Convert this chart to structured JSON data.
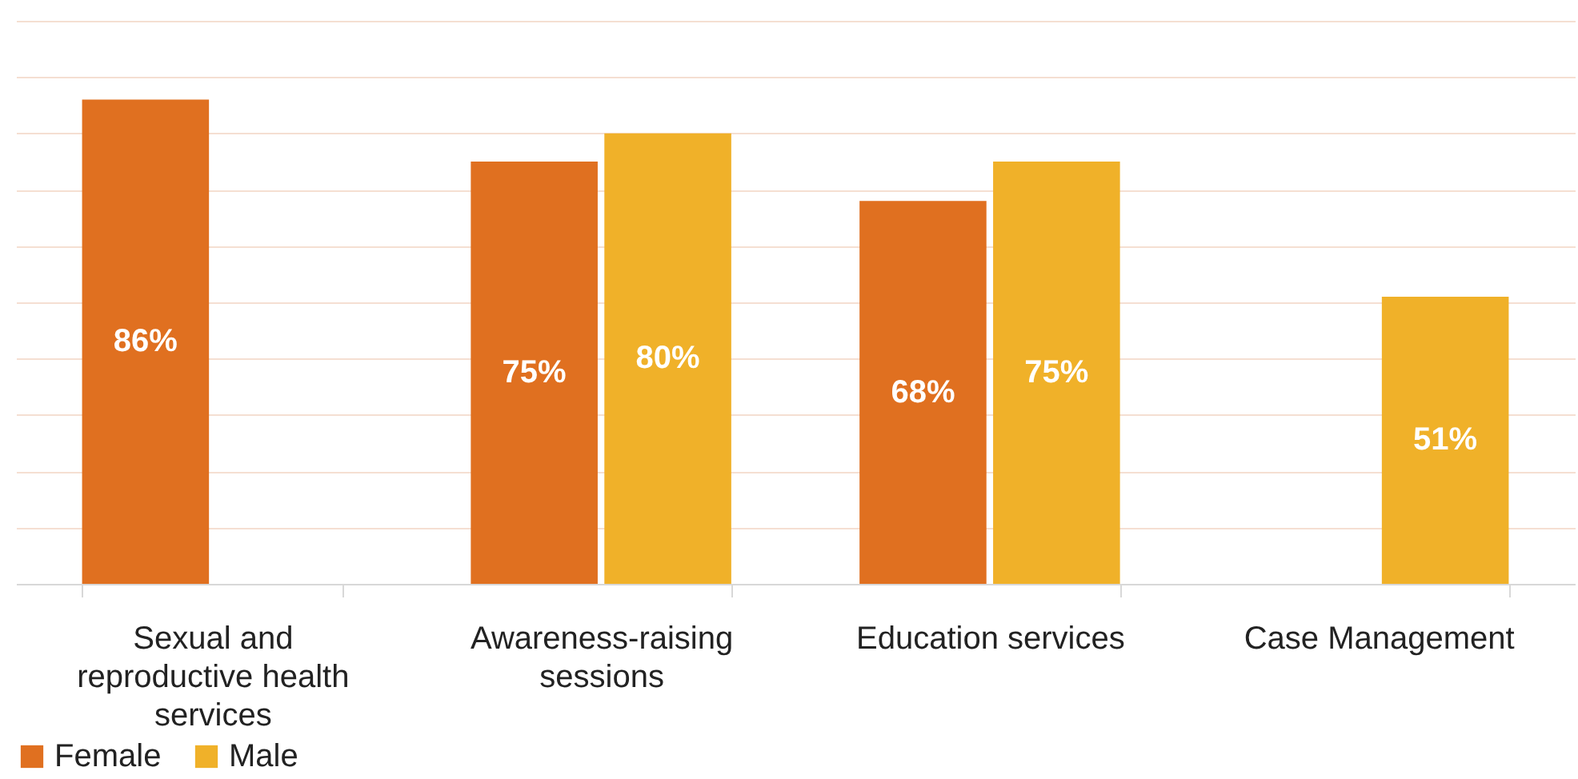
{
  "chart_data": {
    "type": "bar",
    "categories": [
      "Sexual and reproductive health services",
      "Awareness-raising sessions",
      "Education services",
      "Case Management"
    ],
    "series": [
      {
        "name": "Female",
        "color": "#e07020",
        "values": [
          86,
          75,
          68,
          null
        ],
        "value_labels": [
          "86%",
          "75%",
          "68%",
          null
        ]
      },
      {
        "name": "Male",
        "color": "#f0b129",
        "values": [
          null,
          80,
          75,
          51
        ],
        "value_labels": [
          null,
          "80%",
          "75%",
          "51%"
        ]
      }
    ],
    "ylim": [
      0,
      100
    ],
    "yticks": [
      {
        "value": 0,
        "label": null
      },
      {
        "value": 10,
        "label": null
      },
      {
        "value": 20,
        "label": null
      },
      {
        "value": 30,
        "label": null
      },
      {
        "value": 40,
        "label": null
      },
      {
        "value": 50,
        "label": null
      },
      {
        "value": 60,
        "label": null
      },
      {
        "value": 70,
        "label": null
      },
      {
        "value": 80,
        "label": null
      },
      {
        "value": 90,
        "label": null
      },
      {
        "value": 100,
        "label": null
      }
    ],
    "grid": "y",
    "legend": "bottom",
    "tick_labels": "x"
  }
}
